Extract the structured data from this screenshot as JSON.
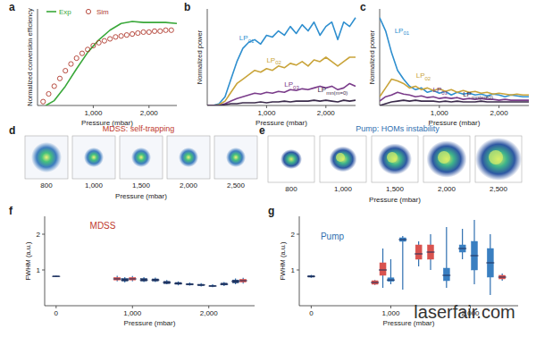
{
  "chart_data": [
    {
      "type": "line",
      "panel_label": "a",
      "xlabel": "Pressure (mbar)",
      "ylabel": "Normalized conversion efficiency",
      "xlim": [
        0,
        2500
      ],
      "ylim": [
        0,
        1
      ],
      "xticks": [
        {
          "value": 1000,
          "label": "1,000"
        },
        {
          "value": 2000,
          "label": "2,000"
        }
      ],
      "tick_labels": "x",
      "legend": "upper left",
      "series": [
        {
          "name": "Exp",
          "type": "line",
          "color": "#3aa83a",
          "x": [
            150,
            300,
            500,
            700,
            900,
            1100,
            1300,
            1500,
            1700,
            1900,
            2100,
            2300,
            2500
          ],
          "values": [
            0,
            0.05,
            0.2,
            0.38,
            0.55,
            0.68,
            0.78,
            0.85,
            0.87,
            0.86,
            0.86,
            0.86,
            0.85
          ]
        },
        {
          "name": "Sim",
          "type": "scatter",
          "marker": "circle",
          "color": "#b03a2e",
          "x": [
            100,
            200,
            300,
            400,
            500,
            600,
            700,
            800,
            900,
            1000,
            1100,
            1200,
            1300,
            1400,
            1500,
            1600,
            1700,
            1800,
            1900,
            2000,
            2100,
            2200,
            2300,
            2400
          ],
          "values": [
            0.04,
            0.12,
            0.2,
            0.28,
            0.36,
            0.43,
            0.49,
            0.54,
            0.58,
            0.62,
            0.65,
            0.67,
            0.69,
            0.71,
            0.72,
            0.73,
            0.74,
            0.75,
            0.76,
            0.76,
            0.77,
            0.77,
            0.78,
            0.78
          ]
        }
      ]
    },
    {
      "type": "line",
      "panel_label": "b",
      "xlabel": "Pressure (mbar)",
      "ylabel": "Normalized power",
      "xlim": [
        0,
        2500
      ],
      "ylim": [
        0,
        1.1
      ],
      "xticks": [
        {
          "value": 1000,
          "label": "1,000"
        },
        {
          "value": 2000,
          "label": "2,000"
        }
      ],
      "tick_labels": "x",
      "x": [
        0,
        100,
        200,
        300,
        400,
        500,
        600,
        700,
        800,
        900,
        1000,
        1100,
        1200,
        1300,
        1400,
        1500,
        1600,
        1700,
        1800,
        1900,
        2000,
        2100,
        2200,
        2300,
        2400,
        2500
      ],
      "series": [
        {
          "name": "LP01",
          "color": "#2f8fcf",
          "values": [
            0,
            0,
            0.02,
            0.1,
            0.3,
            0.5,
            0.65,
            0.72,
            0.75,
            0.7,
            0.8,
            0.78,
            0.85,
            0.8,
            0.9,
            0.82,
            0.92,
            0.85,
            0.95,
            0.8,
            0.9,
            0.95,
            0.75,
            0.95,
            0.9,
            1.0
          ]
        },
        {
          "name": "LP02",
          "color": "#c9a43a",
          "values": [
            0,
            0,
            0.01,
            0.05,
            0.15,
            0.25,
            0.3,
            0.35,
            0.4,
            0.38,
            0.42,
            0.4,
            0.45,
            0.43,
            0.48,
            0.46,
            0.5,
            0.45,
            0.52,
            0.5,
            0.55,
            0.5,
            0.45,
            0.5,
            0.55,
            0.55
          ]
        },
        {
          "name": "LP03",
          "color": "#7a3c8a",
          "values": [
            0,
            0,
            0,
            0.02,
            0.05,
            0.08,
            0.1,
            0.12,
            0.14,
            0.13,
            0.15,
            0.14,
            0.16,
            0.15,
            0.18,
            0.17,
            0.19,
            0.18,
            0.2,
            0.22,
            0.2,
            0.22,
            0.18,
            0.2,
            0.25,
            0.22
          ]
        },
        {
          "name": "LPmn(m=0)",
          "color": "#3a2a4a",
          "values": [
            0,
            0,
            0,
            0.01,
            0.02,
            0.02,
            0.03,
            0.03,
            0.03,
            0.04,
            0.03,
            0.04,
            0.04,
            0.05,
            0.04,
            0.05,
            0.05,
            0.05,
            0.06,
            0.05,
            0.06,
            0.05,
            0.04,
            0.06,
            0.05,
            0.06
          ]
        }
      ]
    },
    {
      "type": "line",
      "panel_label": "c",
      "xlabel": "Pressure (mbar)",
      "ylabel": "Normalized power",
      "xlim": [
        0,
        2500
      ],
      "ylim": [
        0,
        1.1
      ],
      "xticks": [
        {
          "value": 1000,
          "label": "1,000"
        },
        {
          "value": 2000,
          "label": "2,000"
        }
      ],
      "tick_labels": "x",
      "x": [
        0,
        100,
        200,
        300,
        400,
        500,
        600,
        700,
        800,
        900,
        1000,
        1100,
        1200,
        1300,
        1400,
        1500,
        1600,
        1700,
        1800,
        1900,
        2000,
        2100,
        2200,
        2300,
        2400,
        2500
      ],
      "series": [
        {
          "name": "LP01",
          "color": "#2f8fcf",
          "values": [
            1,
            0.85,
            0.6,
            0.4,
            0.3,
            0.22,
            0.18,
            0.2,
            0.15,
            0.17,
            0.14,
            0.16,
            0.12,
            0.15,
            0.13,
            0.14,
            0.12,
            0.13,
            0.11,
            0.13,
            0.12,
            0.1,
            0.12,
            0.11,
            0.1,
            0.1
          ]
        },
        {
          "name": "LP02",
          "color": "#c9a43a",
          "values": [
            0.1,
            0.2,
            0.3,
            0.28,
            0.25,
            0.2,
            0.22,
            0.18,
            0.2,
            0.17,
            0.19,
            0.16,
            0.18,
            0.15,
            0.17,
            0.15,
            0.16,
            0.14,
            0.15,
            0.13,
            0.14,
            0.13,
            0.12,
            0.13,
            0.12,
            0.12
          ]
        },
        {
          "name": "LP03",
          "color": "#7a3c8a",
          "values": [
            0.05,
            0.1,
            0.12,
            0.15,
            0.13,
            0.12,
            0.1,
            0.11,
            0.09,
            0.1,
            0.08,
            0.09,
            0.08,
            0.09,
            0.07,
            0.08,
            0.07,
            0.08,
            0.07,
            0.07,
            0.06,
            0.07,
            0.06,
            0.06,
            0.06,
            0.06
          ]
        },
        {
          "name": "LPmn(m≠0)",
          "color": "#3a2a4a",
          "values": [
            0,
            0.02,
            0.04,
            0.05,
            0.06,
            0.05,
            0.06,
            0.05,
            0.05,
            0.05,
            0.04,
            0.05,
            0.04,
            0.05,
            0.04,
            0.04,
            0.04,
            0.05,
            0.04,
            0.04,
            0.04,
            0.04,
            0.04,
            0.04,
            0.04,
            0.04
          ]
        }
      ]
    },
    {
      "type": "box",
      "panel_label": "f",
      "title": "MDSS",
      "color": "#c0392b",
      "xlabel": "Pressure (mbar)",
      "ylabel": "FWHM (a.u.)",
      "xlim": [
        -150,
        2600
      ],
      "ylim": [
        0,
        2.5
      ],
      "xticks": [
        0,
        {
          "value": 1000,
          "label": "1,000"
        },
        {
          "value": 2000,
          "label": "2,000"
        }
      ],
      "yticks": [
        1,
        2
      ],
      "x": [
        0,
        800,
        900,
        1000,
        1150,
        1300,
        1450,
        1600,
        1750,
        1900,
        2050,
        2200,
        2350,
        2450
      ],
      "whisker_low": [
        0.8,
        0.68,
        0.65,
        0.68,
        0.66,
        0.66,
        0.6,
        0.57,
        0.56,
        0.54,
        0.52,
        0.55,
        0.6,
        0.62
      ],
      "q1": [
        0.81,
        0.72,
        0.69,
        0.72,
        0.69,
        0.69,
        0.62,
        0.6,
        0.58,
        0.56,
        0.54,
        0.58,
        0.64,
        0.66
      ],
      "median": [
        0.82,
        0.75,
        0.72,
        0.75,
        0.72,
        0.72,
        0.65,
        0.62,
        0.6,
        0.58,
        0.55,
        0.6,
        0.68,
        0.7
      ],
      "q3": [
        0.83,
        0.79,
        0.76,
        0.79,
        0.76,
        0.75,
        0.68,
        0.65,
        0.62,
        0.6,
        0.57,
        0.63,
        0.72,
        0.74
      ],
      "whisker_high": [
        0.84,
        0.84,
        0.8,
        0.83,
        0.8,
        0.79,
        0.72,
        0.68,
        0.65,
        0.63,
        0.6,
        0.66,
        0.76,
        0.78
      ],
      "colors": [
        "#1f3a6a",
        "#d9534f",
        "#1f3a6a",
        "#d9534f",
        "#1f3a6a",
        "#1f3a6a",
        "#1f3a6a",
        "#1f3a6a",
        "#1f3a6a",
        "#1f3a6a",
        "#1f3a6a",
        "#1f3a6a",
        "#1f3a6a",
        "#d9534f"
      ]
    },
    {
      "type": "box",
      "panel_label": "g",
      "title": "Pump",
      "color": "#2f6fb0",
      "xlabel": "Pressure (mbar)",
      "ylabel": "FWHM (a.u.)",
      "xlim": [
        -150,
        2600
      ],
      "ylim": [
        0,
        2.5
      ],
      "xticks": [
        0,
        {
          "value": 1000,
          "label": "1,000"
        },
        {
          "value": 2000,
          "label": "2,000"
        }
      ],
      "yticks": [
        1,
        2
      ],
      "x": [
        0,
        800,
        900,
        1000,
        1150,
        1350,
        1500,
        1700,
        1900,
        2050,
        2250,
        2400
      ],
      "whisker_low": [
        0.78,
        0.58,
        0.5,
        0.6,
        0.45,
        1.1,
        1.0,
        0.5,
        1.3,
        0.6,
        0.3,
        0.7
      ],
      "q1": [
        0.8,
        0.6,
        0.85,
        0.68,
        1.8,
        1.3,
        1.3,
        0.7,
        1.5,
        1.0,
        0.8,
        0.75
      ],
      "median": [
        0.82,
        0.65,
        1.0,
        0.72,
        1.85,
        1.45,
        1.5,
        0.85,
        1.6,
        1.4,
        1.2,
        0.8
      ],
      "q3": [
        0.84,
        0.7,
        1.2,
        0.78,
        1.9,
        1.7,
        1.7,
        1.05,
        1.7,
        1.8,
        1.6,
        0.85
      ],
      "whisker_high": [
        0.86,
        0.72,
        1.6,
        1.3,
        1.95,
        1.8,
        2.0,
        2.2,
        2.15,
        2.4,
        2.0,
        0.9
      ],
      "colors": [
        "#1f3a6a",
        "#d9534f",
        "#d9534f",
        "#3a7fc1",
        "#3a7fc1",
        "#d9534f",
        "#d9534f",
        "#3a7fc1",
        "#3a7fc1",
        "#3a7fc1",
        "#3a7fc1",
        "#d9534f"
      ]
    }
  ],
  "profiles": [
    {
      "panel_label": "d",
      "title": "MDSS: self-trapping",
      "color": "#c0392b",
      "labels": [
        "800",
        "1,000",
        "1,500",
        "2,000",
        "2,500"
      ],
      "xlabel": "Pressure (mbar)"
    },
    {
      "panel_label": "e",
      "title": "Pump: HOMs instability",
      "color": "#2f6fb0",
      "labels": [
        "800",
        "1,000",
        "1,500",
        "2,000",
        "2,500"
      ],
      "xlabel": "Pressure (mbar)"
    }
  ],
  "watermark": "laserfair.com"
}
